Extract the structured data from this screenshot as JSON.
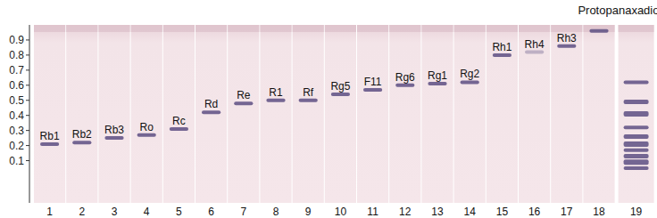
{
  "chart_data": {
    "type": "tlc",
    "categories": [
      "1",
      "2",
      "3",
      "4",
      "5",
      "6",
      "7",
      "8",
      "9",
      "10",
      "11",
      "12",
      "13",
      "14",
      "15",
      "16",
      "17",
      "18",
      "19"
    ],
    "band_labels": [
      "Rb1",
      "Rb2",
      "Rb3",
      "Ro",
      "Rc",
      "Rd",
      "Re",
      "R1",
      "Rf",
      "Rg5",
      "F11",
      "Rg6",
      "Rg1",
      "Rg2",
      "Rh1",
      "Rh4",
      "Rh3",
      "Protopanaxadiol",
      null
    ],
    "bands": [
      [
        0.21
      ],
      [
        0.22
      ],
      [
        0.25
      ],
      [
        0.27
      ],
      [
        0.31
      ],
      [
        0.42
      ],
      [
        0.48
      ],
      [
        0.5
      ],
      [
        0.5
      ],
      [
        0.54
      ],
      [
        0.57
      ],
      [
        0.6
      ],
      [
        0.61
      ],
      [
        0.62
      ],
      [
        0.8
      ],
      [
        0.82
      ],
      [
        0.86
      ],
      [
        0.96
      ],
      [
        0.62,
        0.49,
        0.41,
        0.32,
        0.26,
        0.21,
        0.17,
        0.13,
        0.09,
        0.05
      ]
    ],
    "color": "#5d4f82",
    "ylim": [
      -0.18,
      1.0
    ],
    "yticks": [
      0.1,
      0.2,
      0.3,
      0.4,
      0.5,
      0.6,
      0.7,
      0.8,
      0.9
    ],
    "grid": false
  }
}
